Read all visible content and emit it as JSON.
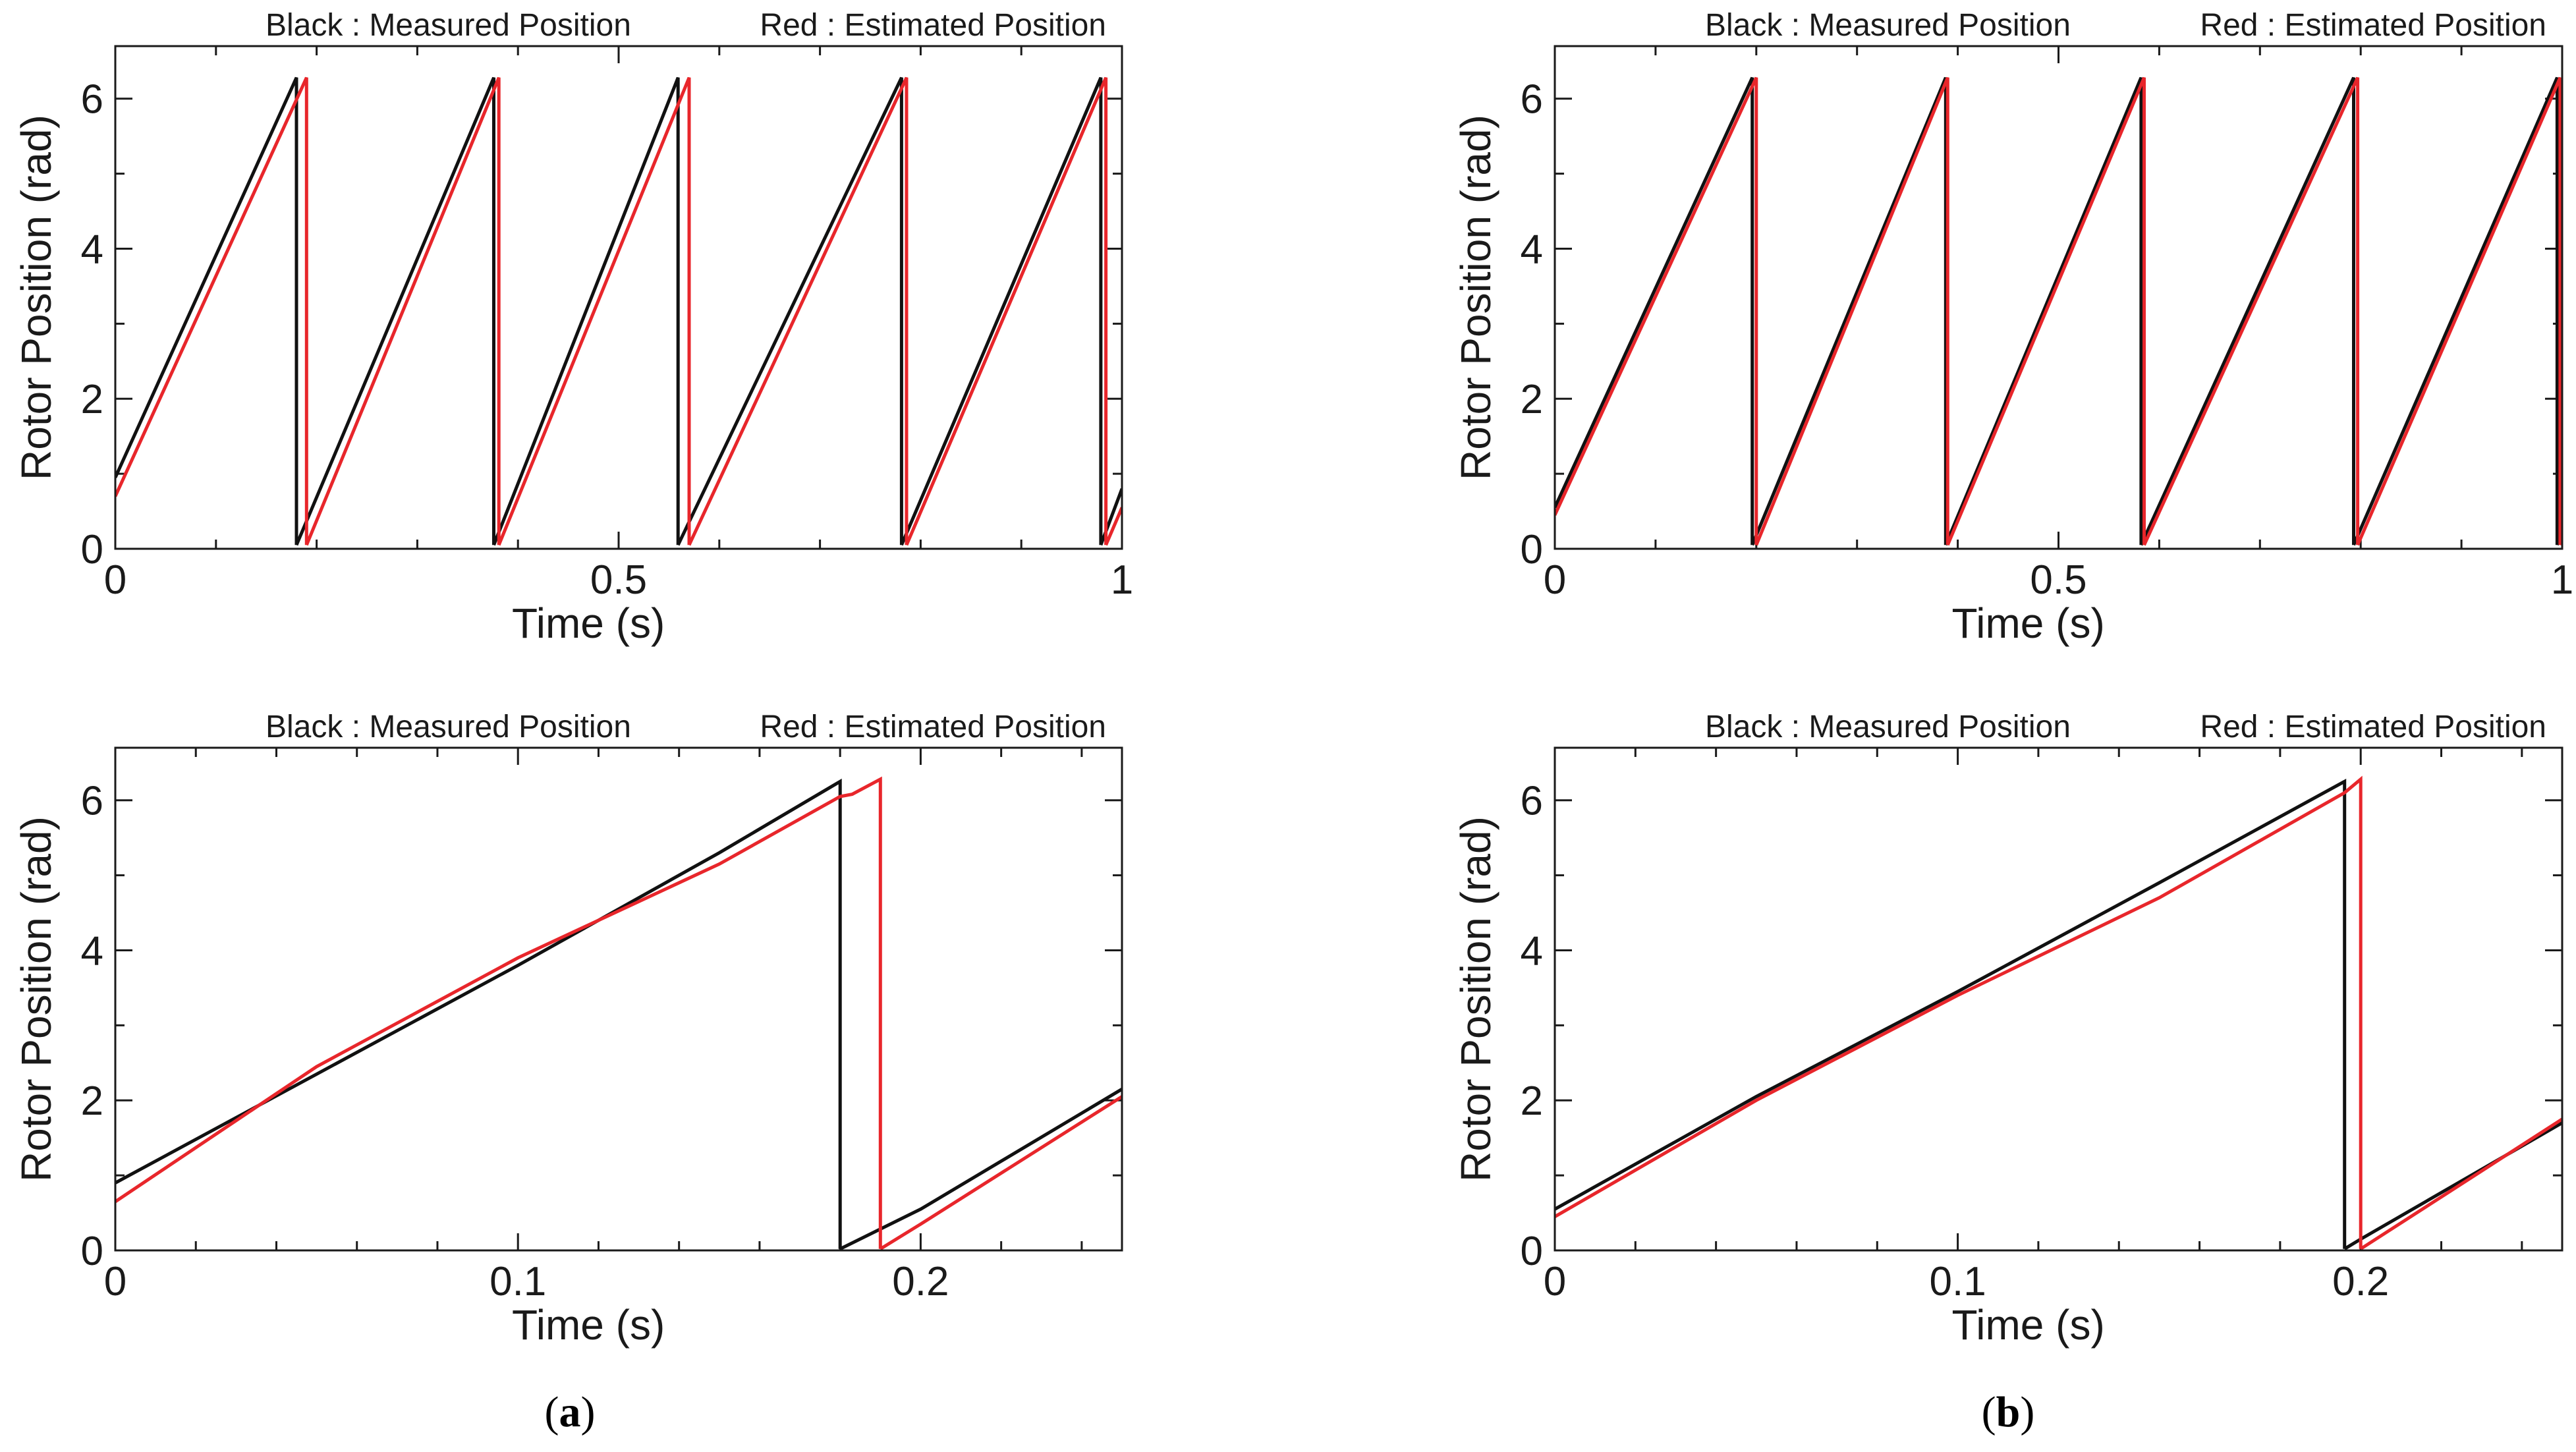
{
  "figure": {
    "caption_a": {
      "open": "(",
      "letter": "a",
      "close": ")"
    },
    "caption_b": {
      "open": "(",
      "letter": "b",
      "close": ")"
    }
  },
  "colors": {
    "measured": "#111111",
    "estimated": "#e8262b",
    "axis": "#1a1a1a"
  },
  "chart_data": [
    {
      "id": "a-top",
      "type": "line",
      "legend": {
        "black": "Black : Measured Position",
        "red": "Red : Estimated Position",
        "placement": "top"
      },
      "xlabel": "Time (s)",
      "ylabel": "Rotor Position (rad)",
      "xlim": [
        0,
        1
      ],
      "ylim": [
        0,
        6.7
      ],
      "xticks": [
        0,
        0.5,
        1
      ],
      "xtick_labels": [
        "0",
        "0.5",
        "1"
      ],
      "yticks": [
        0,
        2,
        4,
        6
      ],
      "ytick_labels": [
        "0",
        "2",
        "4",
        "6"
      ],
      "xminor": 0.1,
      "yminor": 1,
      "series": [
        {
          "color": "black",
          "segments": [
            [
              [
                0,
                0.95
              ],
              [
                0.18,
                6.28
              ]
            ],
            [
              [
                0.18,
                0.05
              ],
              [
                0.376,
                6.28
              ]
            ],
            [
              [
                0.376,
                0.05
              ],
              [
                0.559,
                6.28
              ]
            ],
            [
              [
                0.559,
                0.05
              ],
              [
                0.781,
                6.28
              ]
            ],
            [
              [
                0.781,
                0.05
              ],
              [
                0.979,
                6.28
              ]
            ],
            [
              [
                0.979,
                0.05
              ],
              [
                1.0,
                0.8
              ]
            ]
          ]
        },
        {
          "color": "red",
          "segments": [
            [
              [
                0,
                0.7
              ],
              [
                0.19,
                6.28
              ]
            ],
            [
              [
                0.19,
                0.05
              ],
              [
                0.381,
                6.28
              ]
            ],
            [
              [
                0.381,
                0.05
              ],
              [
                0.57,
                6.28
              ]
            ],
            [
              [
                0.57,
                0.05
              ],
              [
                0.786,
                6.28
              ]
            ],
            [
              [
                0.786,
                0.05
              ],
              [
                0.984,
                6.28
              ]
            ],
            [
              [
                0.984,
                0.05
              ],
              [
                1.0,
                0.55
              ]
            ]
          ]
        }
      ]
    },
    {
      "id": "b-top",
      "type": "line",
      "legend": {
        "black": "Black : Measured Position",
        "red": "Red : Estimated Position",
        "placement": "top"
      },
      "xlabel": "Time (s)",
      "ylabel": "Rotor Position (rad)",
      "xlim": [
        0,
        1
      ],
      "ylim": [
        0,
        6.7
      ],
      "xticks": [
        0,
        0.5,
        1
      ],
      "xtick_labels": [
        "0",
        "0.5",
        "1"
      ],
      "yticks": [
        0,
        2,
        4,
        6
      ],
      "ytick_labels": [
        "0",
        "2",
        "4",
        "6"
      ],
      "xminor": 0.1,
      "yminor": 1,
      "series": [
        {
          "color": "black",
          "segments": [
            [
              [
                0,
                0.55
              ],
              [
                0.196,
                6.28
              ]
            ],
            [
              [
                0.196,
                0.05
              ],
              [
                0.388,
                6.28
              ]
            ],
            [
              [
                0.388,
                0.05
              ],
              [
                0.582,
                6.28
              ]
            ],
            [
              [
                0.582,
                0.05
              ],
              [
                0.793,
                6.28
              ]
            ],
            [
              [
                0.793,
                0.05
              ],
              [
                0.995,
                6.28
              ]
            ],
            [
              [
                0.995,
                0.05
              ],
              [
                1.0,
                0.3
              ]
            ]
          ]
        },
        {
          "color": "red",
          "segments": [
            [
              [
                0,
                0.45
              ],
              [
                0.2,
                6.28
              ]
            ],
            [
              [
                0.2,
                0.05
              ],
              [
                0.39,
                6.28
              ]
            ],
            [
              [
                0.39,
                0.05
              ],
              [
                0.585,
                6.28
              ]
            ],
            [
              [
                0.585,
                0.05
              ],
              [
                0.797,
                6.28
              ]
            ],
            [
              [
                0.797,
                0.05
              ],
              [
                0.998,
                6.28
              ]
            ],
            [
              [
                0.998,
                0.05
              ],
              [
                1.0,
                0.15
              ]
            ]
          ]
        }
      ]
    },
    {
      "id": "a-bottom",
      "type": "line",
      "legend": {
        "black": "Black : Measured Position",
        "red": "Red : Estimated Position",
        "placement": "top"
      },
      "xlabel": "Time (s)",
      "ylabel": "Rotor Position (rad)",
      "xlim": [
        0,
        0.25
      ],
      "ylim": [
        0,
        6.7
      ],
      "xticks": [
        0,
        0.1,
        0.2
      ],
      "xtick_labels": [
        "0",
        "0.1",
        "0.2"
      ],
      "yticks": [
        0,
        2,
        4,
        6
      ],
      "ytick_labels": [
        "0",
        "2",
        "4",
        "6"
      ],
      "xminor": 0.02,
      "yminor": 1,
      "series": [
        {
          "color": "black",
          "segments": [
            [
              [
                0,
                0.9
              ],
              [
                0.05,
                2.35
              ],
              [
                0.1,
                3.8
              ],
              [
                0.15,
                5.3
              ],
              [
                0.18,
                6.25
              ]
            ],
            [
              [
                0.18,
                0.02
              ],
              [
                0.2,
                0.55
              ],
              [
                0.25,
                2.15
              ]
            ]
          ]
        },
        {
          "color": "red",
          "segments": [
            [
              [
                0,
                0.65
              ],
              [
                0.05,
                2.45
              ],
              [
                0.1,
                3.9
              ],
              [
                0.15,
                5.15
              ],
              [
                0.18,
                6.05
              ],
              [
                0.183,
                6.08
              ],
              [
                0.19,
                6.28
              ]
            ],
            [
              [
                0.19,
                0.02
              ],
              [
                0.2,
                0.35
              ],
              [
                0.25,
                2.05
              ]
            ]
          ]
        }
      ]
    },
    {
      "id": "b-bottom",
      "type": "line",
      "legend": {
        "black": "Black : Measured Position",
        "red": "Red : Estimated Position",
        "placement": "top"
      },
      "xlabel": "Time (s)",
      "ylabel": "Rotor Position (rad)",
      "xlim": [
        0,
        0.25
      ],
      "ylim": [
        0,
        6.7
      ],
      "xticks": [
        0,
        0.1,
        0.2
      ],
      "xtick_labels": [
        "0",
        "0.1",
        "0.2"
      ],
      "yticks": [
        0,
        2,
        4,
        6
      ],
      "ytick_labels": [
        "0",
        "2",
        "4",
        "6"
      ],
      "xminor": 0.02,
      "yminor": 1,
      "series": [
        {
          "color": "black",
          "segments": [
            [
              [
                0,
                0.55
              ],
              [
                0.05,
                2.05
              ],
              [
                0.1,
                3.45
              ],
              [
                0.15,
                4.9
              ],
              [
                0.196,
                6.25
              ]
            ],
            [
              [
                0.196,
                0.02
              ],
              [
                0.2,
                0.15
              ],
              [
                0.25,
                1.7
              ]
            ]
          ]
        },
        {
          "color": "red",
          "segments": [
            [
              [
                0,
                0.45
              ],
              [
                0.05,
                2.0
              ],
              [
                0.1,
                3.4
              ],
              [
                0.15,
                4.7
              ],
              [
                0.196,
                6.1
              ],
              [
                0.2,
                6.28
              ]
            ],
            [
              [
                0.2,
                0.02
              ],
              [
                0.25,
                1.75
              ]
            ]
          ]
        }
      ]
    }
  ]
}
